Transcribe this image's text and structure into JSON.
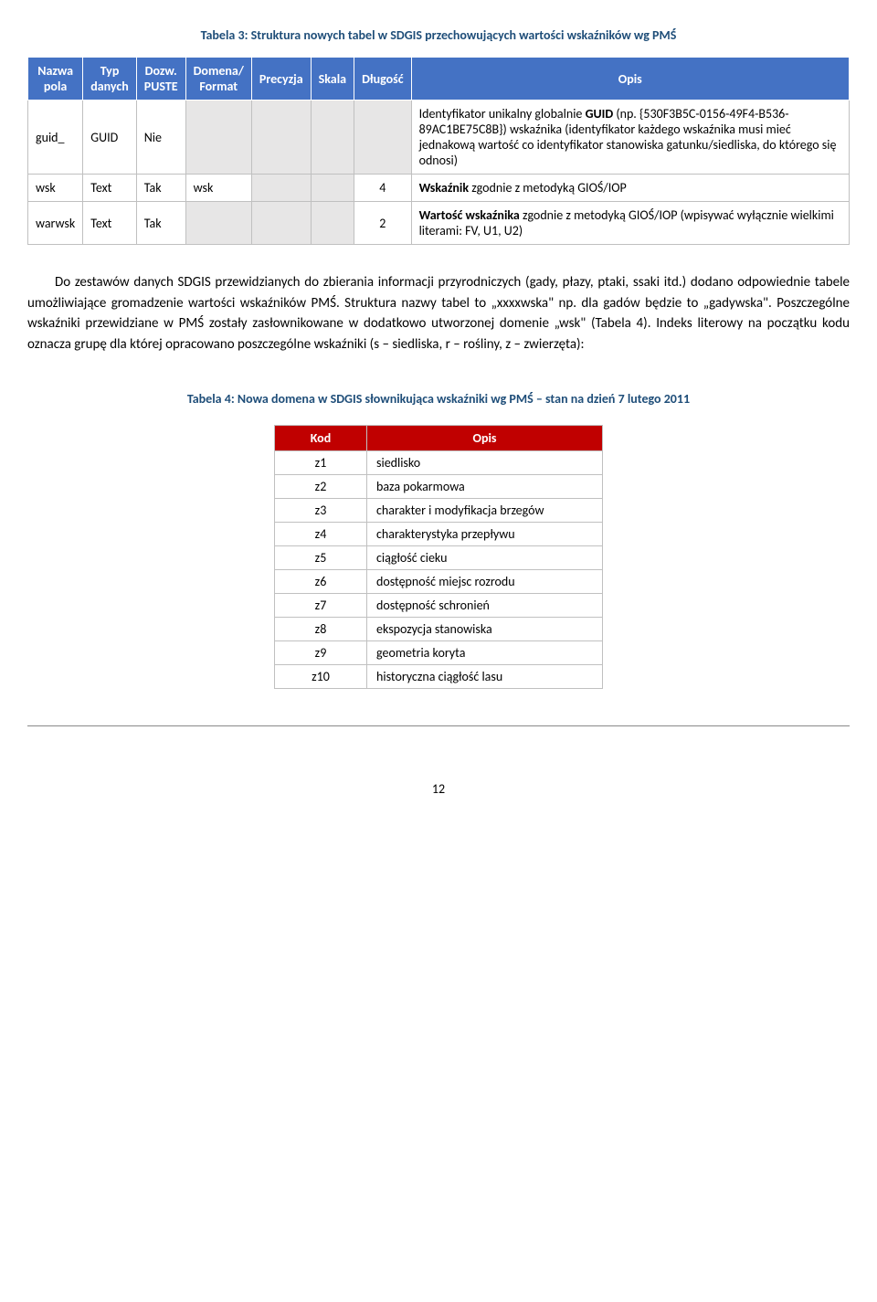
{
  "table3_title": "Tabela 3: Struktura nowych tabel w SDGIS przechowujących wartości wskaźników wg PMŚ",
  "table3": {
    "headers": {
      "col1_line1": "Nazwa",
      "col1_line2": "pola",
      "col2_line1": "Typ",
      "col2_line2": "danych",
      "col3_line1": "Dozw.",
      "col3_line2": "PUSTE",
      "col4_line1": "Domena/",
      "col4_line2": "Format",
      "col5": "Precyzja",
      "col6": "Skala",
      "col7": "Długość",
      "col8": "Opis"
    },
    "rows": [
      {
        "c1": "guid_",
        "c2": "GUID",
        "c3": "Nie",
        "c4": "",
        "c5": "",
        "c6": "",
        "c7": "",
        "c8": "Identyfikator unikalny globalnie GUID (np. {530F3B5C-0156-49F4-B536-89AC1BE75C8B}) wskaźnika (identyfikator każdego wskaźnika musi mieć jednakową wartość co identyfikator stanowiska gatunku/siedliska, do którego się odnosi)"
      },
      {
        "c1": "wsk",
        "c2": "Text",
        "c3": "Tak",
        "c4": "wsk",
        "c5": "",
        "c6": "",
        "c7": "4",
        "c8": "Wskaźnik zgodnie z metodyką GIOŚ/IOP"
      },
      {
        "c1": "warwsk",
        "c2": "Text",
        "c3": "Tak",
        "c4": "",
        "c5": "",
        "c6": "",
        "c7": "2",
        "c8": "Wartość wskaźnika zgodnie z metodyką GIOŚ/IOP (wpisywać wyłącznie wielkimi literami: FV, U1, U2)"
      }
    ]
  },
  "paragraph": "Do zestawów danych SDGIS przewidzianych do zbierania informacji przyrodniczych (gady, płazy, ptaki, ssaki itd.) dodano odpowiednie tabele umożliwiające gromadzenie wartości wskaźników PMŚ. Struktura nazwy tabel to „xxxxwska\" np. dla gadów będzie to „gadywska\". Poszczególne wskaźniki przewidziane w PMŚ zostały zasłownikowane w dodatkowo utworzonej domenie „wsk\" (Tabela 4). Indeks literowy na początku kodu oznacza grupę dla której opracowano poszczególne wskaźniki (s – siedliska, r – rośliny, z – zwierzęta):",
  "table4_title": "Tabela 4: Nowa domena w SDGIS słownikująca wskaźniki wg PMŚ – stan na dzień 7 lutego 2011",
  "table4": {
    "headers": {
      "col1": "Kod",
      "col2": "Opis"
    },
    "rows": [
      {
        "code": "z1",
        "opis": "siedlisko"
      },
      {
        "code": "z2",
        "opis": "baza pokarmowa"
      },
      {
        "code": "z3",
        "opis": "charakter i modyfikacja brzegów"
      },
      {
        "code": "z4",
        "opis": "charakterystyka przepływu"
      },
      {
        "code": "z5",
        "opis": "ciągłość cieku"
      },
      {
        "code": "z6",
        "opis": "dostępność miejsc rozrodu"
      },
      {
        "code": "z7",
        "opis": "dostępność schronień"
      },
      {
        "code": "z8",
        "opis": "ekspozycja stanowiska"
      },
      {
        "code": "z9",
        "opis": "geometria koryta"
      },
      {
        "code": "z10",
        "opis": "historyczna ciągłość lasu"
      }
    ]
  },
  "pagenum": "12",
  "bold": {
    "guid_label": "GUID",
    "wskaznik_label": "Wskaźnik",
    "wartosc_label": "Wartość wskaźnika"
  }
}
